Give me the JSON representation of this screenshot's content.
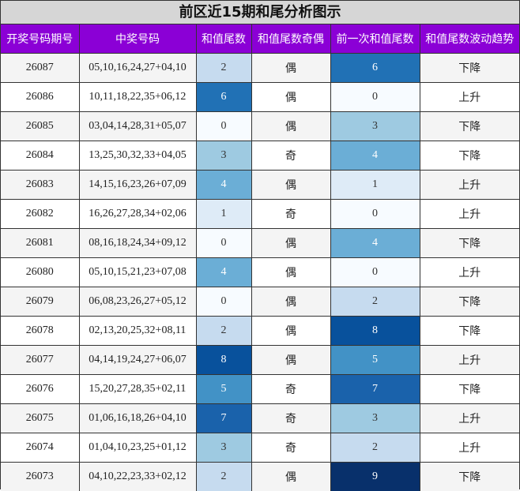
{
  "title": "前区近15期和尾分析图示",
  "headers": [
    "开奖号码期号",
    "中奖号码",
    "和值尾数",
    "和值尾数奇偶",
    "前一次和值尾数",
    "和值尾数波动趋势"
  ],
  "colors": {
    "header_bg": "#8b00d6",
    "scale": [
      "#f7fbff",
      "#deebf7",
      "#c6dbef",
      "#9ecae1",
      "#6baed6",
      "#4292c6",
      "#2171b5",
      "#1a62ab",
      "#08519c",
      "#08306b"
    ]
  },
  "rows": [
    {
      "issue": "26087",
      "numbers": "05,10,16,24,27+04,10",
      "tail": 2,
      "parity": "偶",
      "prev_tail": 6,
      "trend": "下降"
    },
    {
      "issue": "26086",
      "numbers": "10,11,18,22,35+06,12",
      "tail": 6,
      "parity": "偶",
      "prev_tail": 0,
      "trend": "上升"
    },
    {
      "issue": "26085",
      "numbers": "03,04,14,28,31+05,07",
      "tail": 0,
      "parity": "偶",
      "prev_tail": 3,
      "trend": "下降"
    },
    {
      "issue": "26084",
      "numbers": "13,25,30,32,33+04,05",
      "tail": 3,
      "parity": "奇",
      "prev_tail": 4,
      "trend": "下降"
    },
    {
      "issue": "26083",
      "numbers": "14,15,16,23,26+07,09",
      "tail": 4,
      "parity": "偶",
      "prev_tail": 1,
      "trend": "上升"
    },
    {
      "issue": "26082",
      "numbers": "16,26,27,28,34+02,06",
      "tail": 1,
      "parity": "奇",
      "prev_tail": 0,
      "trend": "上升"
    },
    {
      "issue": "26081",
      "numbers": "08,16,18,24,34+09,12",
      "tail": 0,
      "parity": "偶",
      "prev_tail": 4,
      "trend": "下降"
    },
    {
      "issue": "26080",
      "numbers": "05,10,15,21,23+07,08",
      "tail": 4,
      "parity": "偶",
      "prev_tail": 0,
      "trend": "上升"
    },
    {
      "issue": "26079",
      "numbers": "06,08,23,26,27+05,12",
      "tail": 0,
      "parity": "偶",
      "prev_tail": 2,
      "trend": "下降"
    },
    {
      "issue": "26078",
      "numbers": "02,13,20,25,32+08,11",
      "tail": 2,
      "parity": "偶",
      "prev_tail": 8,
      "trend": "下降"
    },
    {
      "issue": "26077",
      "numbers": "04,14,19,24,27+06,07",
      "tail": 8,
      "parity": "偶",
      "prev_tail": 5,
      "trend": "上升"
    },
    {
      "issue": "26076",
      "numbers": "15,20,27,28,35+02,11",
      "tail": 5,
      "parity": "奇",
      "prev_tail": 7,
      "trend": "下降"
    },
    {
      "issue": "26075",
      "numbers": "01,06,16,18,26+04,10",
      "tail": 7,
      "parity": "奇",
      "prev_tail": 3,
      "trend": "上升"
    },
    {
      "issue": "26074",
      "numbers": "01,04,10,23,25+01,12",
      "tail": 3,
      "parity": "奇",
      "prev_tail": 2,
      "trend": "上升"
    },
    {
      "issue": "26073",
      "numbers": "04,10,22,23,33+02,12",
      "tail": 2,
      "parity": "偶",
      "prev_tail": 9,
      "trend": "下降"
    }
  ]
}
